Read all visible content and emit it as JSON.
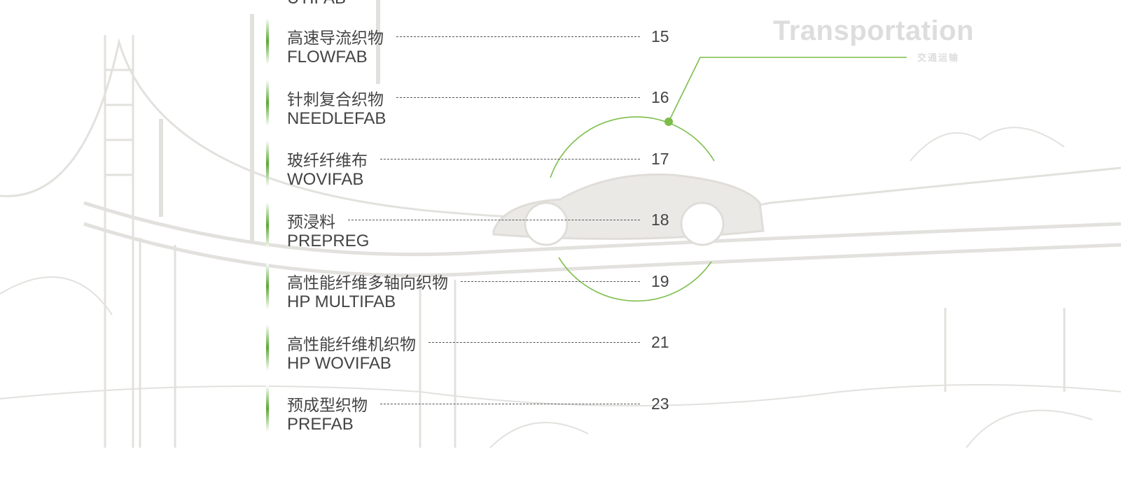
{
  "header": {
    "title": "Transportation",
    "subtitle": "交通运输"
  },
  "partial_entry": {
    "en": "UTIFAB"
  },
  "entries": [
    {
      "cn": "高速导流织物",
      "en": "FLOWFAB",
      "page": "15"
    },
    {
      "cn": "针刺复合织物",
      "en": "NEEDLEFAB",
      "page": "16"
    },
    {
      "cn": "玻纤纤维布",
      "en": "WOVIFAB",
      "page": "17"
    },
    {
      "cn": "预浸料",
      "en": "PREPREG",
      "page": "18"
    },
    {
      "cn": "高性能纤维多轴向织物",
      "en": "HP MULTIFAB",
      "page": "19"
    },
    {
      "cn": "高性能纤维机织物",
      "en": "HP WOVIFAB",
      "page": "21"
    },
    {
      "cn": "预成型织物",
      "en": "PREFAB",
      "page": "23"
    }
  ]
}
